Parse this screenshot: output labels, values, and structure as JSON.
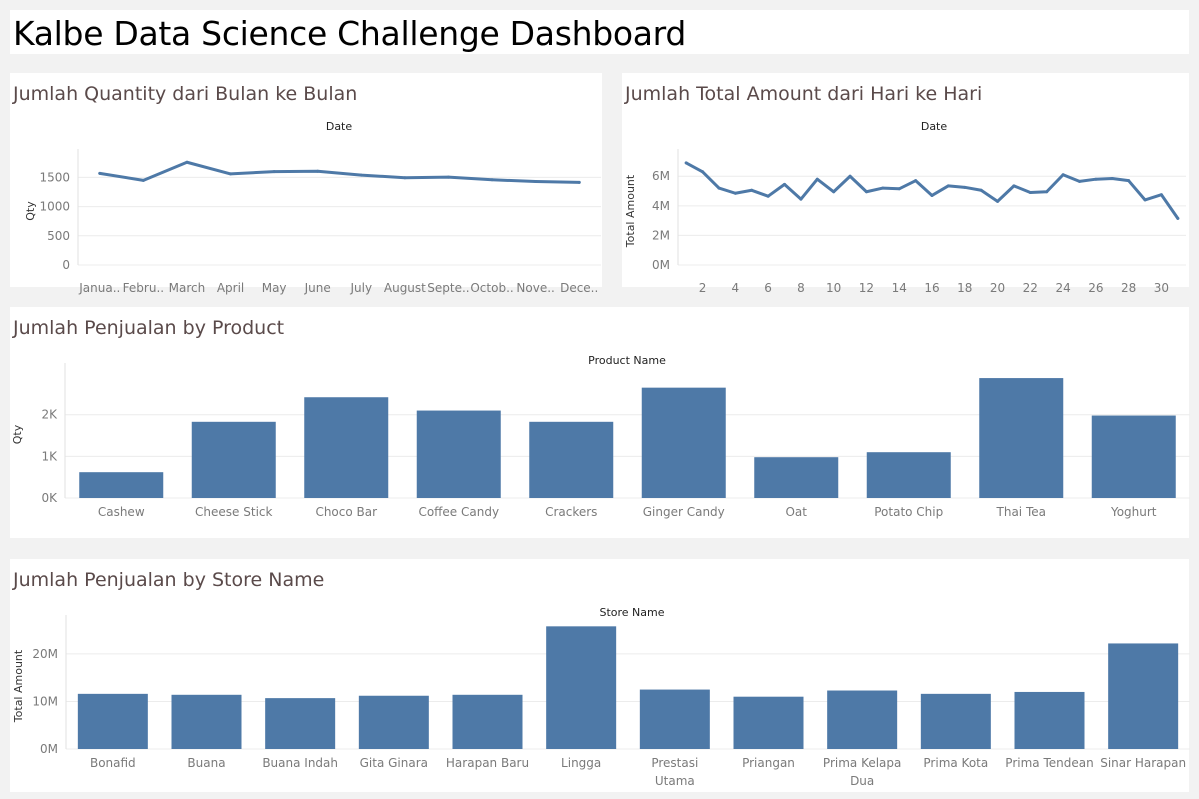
{
  "dashboard": {
    "title": "Kalbe Data Science Challenge Dashboard"
  },
  "chart_data": [
    {
      "type": "line",
      "title": "Jumlah Quantity dari Bulan ke Bulan",
      "header": "Date",
      "xlabel": "",
      "ylabel": "Qty",
      "categories": [
        "Janua..",
        "Febru..",
        "March",
        "April",
        "May",
        "June",
        "July",
        "August",
        "Septe..",
        "Octob..",
        "Nove..",
        "Dece.."
      ],
      "values": [
        1570,
        1450,
        1760,
        1560,
        1600,
        1605,
        1540,
        1495,
        1505,
        1460,
        1430,
        1415
      ],
      "ylim": [
        0,
        1850
      ],
      "yticks": [
        0,
        500,
        1000,
        1500
      ],
      "ytick_labels": [
        "0",
        "500",
        "1000",
        "1500"
      ],
      "grid": true,
      "color": "#4e79a7"
    },
    {
      "type": "line",
      "title": "Jumlah Total Amount dari Hari ke Hari",
      "header": "Date",
      "xlabel": "",
      "ylabel": "Total Amount",
      "x": [
        1,
        2,
        3,
        4,
        5,
        6,
        7,
        8,
        9,
        10,
        11,
        12,
        13,
        14,
        15,
        16,
        17,
        18,
        19,
        20,
        21,
        22,
        23,
        24,
        25,
        26,
        27,
        28,
        29,
        30,
        31
      ],
      "values": [
        6.9,
        6.3,
        5.2,
        4.85,
        5.05,
        4.65,
        5.45,
        4.45,
        5.8,
        4.95,
        6.0,
        4.95,
        5.2,
        5.15,
        5.7,
        4.7,
        5.35,
        5.25,
        5.05,
        4.3,
        5.35,
        4.9,
        4.95,
        6.1,
        5.65,
        5.8,
        5.85,
        5.7,
        4.4,
        4.75,
        3.15
      ],
      "ylim": [
        0,
        7.3
      ],
      "yticks": [
        0,
        2,
        4,
        6
      ],
      "ytick_labels": [
        "0M",
        "2M",
        "4M",
        "6M"
      ],
      "xtick_labels": [
        "2",
        "4",
        "6",
        "8",
        "10",
        "12",
        "14",
        "16",
        "18",
        "20",
        "22",
        "24",
        "26",
        "28",
        "30"
      ],
      "grid": true,
      "color": "#4e79a7"
    },
    {
      "type": "bar",
      "title": "Jumlah Penjualan by Product",
      "header": "Product Name",
      "xlabel": "",
      "ylabel": "Qty",
      "categories": [
        "Cashew",
        "Cheese Stick",
        "Choco Bar",
        "Coffee Candy",
        "Crackers",
        "Ginger Candy",
        "Oat",
        "Potato Chip",
        "Thai Tea",
        "Yoghurt"
      ],
      "values": [
        0.62,
        1.83,
        2.42,
        2.1,
        1.83,
        2.65,
        0.98,
        1.1,
        2.88,
        1.98
      ],
      "ylim": [
        0,
        3.05
      ],
      "yticks": [
        0,
        1,
        2
      ],
      "ytick_labels": [
        "0K",
        "1K",
        "2K"
      ],
      "grid": true,
      "color": "#4e79a7"
    },
    {
      "type": "bar",
      "title": "Jumlah Penjualan by Store Name",
      "header": "Store Name",
      "xlabel": "",
      "ylabel": "Total Amount",
      "categories": [
        "Bonafid",
        "Buana",
        "Buana Indah",
        "Gita Ginara",
        "Harapan Baru",
        "Lingga",
        "Prestasi Utama",
        "Priangan",
        "Prima Kelapa Dua",
        "Prima Kota",
        "Prima Tendean",
        "Sinar Harapan"
      ],
      "values": [
        11.6,
        11.4,
        10.7,
        11.2,
        11.4,
        25.8,
        12.5,
        11.0,
        12.3,
        11.6,
        12.0,
        22.2
      ],
      "ylim": [
        0,
        26.5
      ],
      "yticks": [
        0,
        10,
        20
      ],
      "ytick_labels": [
        "0M",
        "10M",
        "20M"
      ],
      "grid": true,
      "color": "#4e79a7"
    }
  ]
}
